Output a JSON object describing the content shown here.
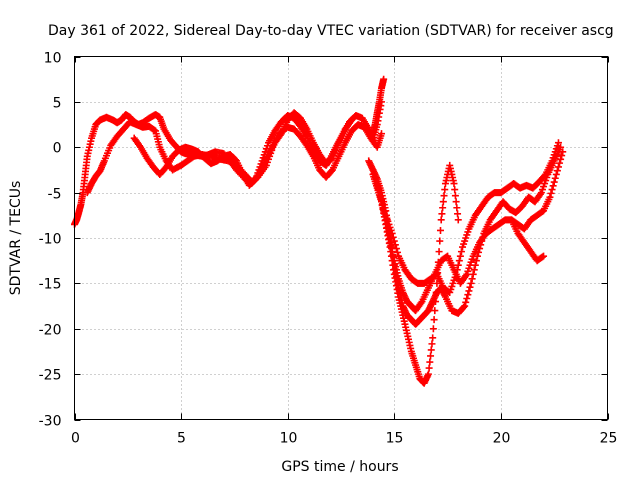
{
  "chart_data": {
    "type": "scatter",
    "title": "Day 361 of 2022, Sidereal Day-to-day VTEC variation (SDTVAR) for receiver ascg",
    "xlabel": "GPS time / hours",
    "ylabel": "SDTVAR / TECUs",
    "xlim": [
      0,
      25
    ],
    "ylim": [
      -30,
      10
    ],
    "xticks": [
      "0",
      "5",
      "10",
      "15",
      "20",
      "25"
    ],
    "yticks": [
      "-30",
      "-25",
      "-20",
      "-15",
      "-10",
      "-5",
      "0",
      "5",
      "10"
    ],
    "grid": true,
    "marker": "+",
    "color": "#ff0000",
    "series": [
      {
        "x": [
          0.0,
          0.1,
          0.2,
          0.3,
          0.4,
          0.5,
          0.6,
          0.8,
          1.0,
          1.2,
          1.5,
          1.8,
          2.0,
          2.2,
          2.4,
          2.6,
          2.8,
          3.0,
          3.2,
          3.5,
          3.8,
          4.0,
          4.2,
          4.5,
          4.8,
          5.0,
          5.2,
          5.5,
          5.8,
          6.0,
          6.3,
          6.6,
          7.0,
          7.3,
          7.6,
          8.0,
          8.3,
          8.5,
          8.8,
          9.1,
          9.4,
          9.7,
          10.0,
          10.3,
          10.6,
          10.9,
          11.2,
          11.5,
          11.8,
          12.0,
          12.3,
          12.6,
          12.9,
          13.2,
          13.5,
          13.8,
          14.0,
          14.2,
          14.4
        ],
        "y": [
          -8.5,
          -8.0,
          -7.2,
          -6.3,
          -5.0,
          -3.0,
          -1.0,
          1.0,
          2.5,
          3.0,
          3.3,
          3.0,
          2.7,
          3.0,
          3.6,
          3.3,
          2.8,
          2.5,
          2.7,
          3.2,
          3.6,
          3.3,
          2.0,
          0.8,
          0.0,
          -0.5,
          -0.7,
          -0.8,
          -0.9,
          -1.0,
          -0.8,
          -0.5,
          -0.7,
          -1.5,
          -2.5,
          -3.5,
          -4.0,
          -3.5,
          -1.5,
          0.5,
          1.8,
          2.8,
          3.5,
          3.2,
          2.3,
          1.2,
          -0.3,
          -1.5,
          -2.0,
          -1.2,
          0.2,
          1.5,
          2.8,
          3.5,
          3.2,
          2.0,
          0.8,
          2.5,
          5.0
        ]
      },
      {
        "x": [
          0.6,
          0.8,
          1.0,
          1.2,
          1.4,
          1.7,
          2.0,
          2.3,
          2.6,
          2.9,
          3.2,
          3.5,
          3.8,
          4.0,
          4.3,
          4.6,
          5.0,
          5.3,
          5.6,
          6.0,
          6.4,
          6.8,
          7.2,
          7.6,
          8.0,
          8.3,
          8.6,
          9.0,
          9.3,
          9.6,
          10.0,
          10.3,
          10.6,
          10.9,
          11.2,
          11.5,
          11.8,
          12.1,
          12.4,
          12.7,
          13.0,
          13.3,
          13.6,
          13.9,
          14.2,
          14.4
        ],
        "y": [
          -5.0,
          -4.0,
          -3.2,
          -2.6,
          -1.5,
          0.2,
          1.2,
          2.0,
          2.8,
          2.5,
          2.2,
          2.3,
          1.8,
          0.0,
          -1.5,
          -2.5,
          -2.0,
          -1.5,
          -1.0,
          -0.8,
          -1.0,
          -1.3,
          -1.5,
          -2.0,
          -3.0,
          -3.8,
          -3.3,
          -2.0,
          0.0,
          1.5,
          2.2,
          2.0,
          1.2,
          0.2,
          -1.0,
          -2.5,
          -3.3,
          -2.5,
          -1.0,
          0.5,
          1.8,
          2.5,
          2.2,
          1.0,
          0.0,
          1.5
        ]
      },
      {
        "x": [
          2.8,
          3.1,
          3.4,
          3.7,
          4.0,
          4.3,
          4.6,
          4.9,
          5.2,
          5.5,
          5.8,
          6.1,
          6.4,
          6.7,
          7.0,
          7.3,
          7.6,
          7.9,
          8.2,
          8.5,
          8.8,
          9.1,
          9.4,
          9.7,
          10.0,
          10.3,
          10.6,
          10.9,
          11.2,
          11.5,
          11.8,
          12.1,
          12.4,
          12.7,
          13.0
        ],
        "y": [
          1.0,
          0.0,
          -1.2,
          -2.2,
          -3.0,
          -2.2,
          -1.0,
          -0.3,
          0.0,
          -0.2,
          -0.5,
          -1.2,
          -1.8,
          -1.5,
          -1.0,
          -0.8,
          -1.5,
          -3.0,
          -4.2,
          -3.5,
          -2.2,
          -0.8,
          0.5,
          1.5,
          3.0,
          3.8,
          3.2,
          2.0,
          0.5,
          -0.8,
          -1.8,
          -1.2,
          0.5,
          2.0,
          3.0
        ]
      },
      {
        "x": [
          13.8,
          14.0,
          14.2,
          14.4,
          14.6,
          14.8,
          15.0,
          15.2,
          15.4,
          15.6,
          15.8,
          16.0,
          16.2,
          16.4,
          16.6,
          16.8,
          17.0,
          17.2,
          17.4,
          17.7,
          18.0,
          18.3,
          18.6,
          18.9,
          19.2,
          19.5,
          19.8,
          20.1,
          20.4,
          20.7,
          21.0,
          21.3,
          21.6,
          21.9,
          22.2,
          22.5,
          22.8
        ],
        "y": [
          -1.5,
          -2.5,
          -3.5,
          -5.0,
          -7.0,
          -10.0,
          -13.0,
          -15.5,
          -17.5,
          -18.5,
          -19.0,
          -19.5,
          -19.0,
          -18.5,
          -18.0,
          -17.0,
          -16.0,
          -15.5,
          -16.5,
          -18.0,
          -18.3,
          -17.5,
          -15.0,
          -12.0,
          -9.5,
          -8.0,
          -7.0,
          -6.0,
          -6.8,
          -7.2,
          -6.5,
          -5.5,
          -6.0,
          -5.0,
          -3.0,
          -1.5,
          0.0
        ]
      },
      {
        "x": [
          14.2,
          14.4,
          14.6,
          14.8,
          15.0,
          15.2,
          15.4,
          15.6,
          15.8,
          16.0,
          16.2,
          16.4,
          16.6,
          16.8,
          17.0,
          17.2,
          17.4,
          17.6,
          17.8,
          18.0
        ],
        "y": [
          -4.0,
          -6.0,
          -8.5,
          -11.0,
          -14.0,
          -16.5,
          -18.5,
          -20.5,
          -22.5,
          -24.0,
          -25.5,
          -26.0,
          -25.0,
          -21.0,
          -15.0,
          -8.0,
          -4.0,
          -2.0,
          -4.0,
          -8.0
        ]
      },
      {
        "x": [
          14.0,
          14.3,
          14.6,
          14.9,
          15.2,
          15.5,
          15.8,
          16.1,
          16.4,
          16.7,
          17.0,
          17.3,
          17.6,
          17.9,
          18.2,
          18.5,
          18.8,
          19.1,
          19.4,
          19.7,
          20.0,
          20.3,
          20.6,
          20.9,
          21.2,
          21.5,
          21.8,
          22.1,
          22.4,
          22.7
        ],
        "y": [
          -2.5,
          -5.0,
          -7.5,
          -9.5,
          -12.0,
          -13.5,
          -14.5,
          -15.0,
          -15.0,
          -14.5,
          -14.0,
          -15.5,
          -16.0,
          -14.0,
          -11.0,
          -9.0,
          -7.5,
          -6.5,
          -5.5,
          -5.0,
          -5.0,
          -4.5,
          -4.0,
          -4.5,
          -4.2,
          -4.5,
          -3.8,
          -3.0,
          -1.5,
          0.5
        ]
      },
      {
        "x": [
          14.0,
          14.2,
          14.4,
          14.6,
          14.8,
          15.0,
          15.2,
          15.4,
          15.6,
          15.8,
          16.0,
          16.3,
          16.6,
          16.9,
          17.2,
          17.5,
          17.8,
          18.1,
          18.4,
          18.7,
          19.0,
          19.3,
          19.6,
          19.9,
          20.2,
          20.5,
          20.8,
          21.1,
          21.4,
          21.7,
          22.0,
          22.3,
          22.6,
          22.9
        ],
        "y": [
          -3.0,
          -4.5,
          -6.0,
          -8.0,
          -10.5,
          -12.5,
          -14.5,
          -16.0,
          -17.0,
          -17.5,
          -18.0,
          -17.0,
          -15.5,
          -14.0,
          -12.5,
          -12.0,
          -13.5,
          -15.0,
          -14.0,
          -12.0,
          -10.5,
          -9.5,
          -9.0,
          -8.5,
          -8.0,
          -8.0,
          -8.5,
          -9.0,
          -8.0,
          -7.5,
          -7.0,
          -5.5,
          -3.0,
          -0.5
        ]
      },
      {
        "x": [
          14.0,
          14.1,
          14.2,
          14.3,
          14.4,
          14.5
        ],
        "y": [
          1.5,
          2.5,
          3.8,
          5.0,
          6.5,
          7.5
        ]
      },
      {
        "x": [
          20.5,
          20.8,
          21.1,
          21.4,
          21.7,
          22.0
        ],
        "y": [
          -8.0,
          -9.5,
          -10.5,
          -11.5,
          -12.5,
          -12.0
        ]
      }
    ]
  }
}
